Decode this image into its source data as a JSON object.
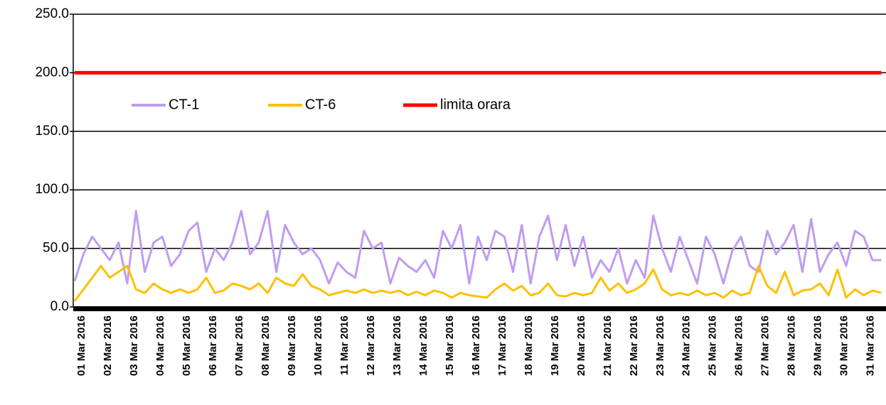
{
  "chart_data": {
    "type": "line",
    "categories": [
      "01 Mar 2016",
      null,
      null,
      "02 Mar 2016",
      null,
      null,
      "03 Mar 2016",
      null,
      null,
      "04 Mar 2016",
      null,
      null,
      "05 Mar 2016",
      null,
      null,
      "06 Mar 2016",
      null,
      null,
      "07 Mar 2016",
      null,
      null,
      "08 Mar 2016",
      null,
      null,
      "09 Mar 2016",
      null,
      null,
      "10 Mar 2016",
      null,
      null,
      "11 Mar 2016",
      null,
      null,
      "12 Mar 2016",
      null,
      null,
      "13 Mar 2016",
      null,
      null,
      "14 Mar 2016",
      null,
      null,
      "15 Mar 2016",
      null,
      null,
      "16 Mar 2016",
      null,
      null,
      "17 Mar 2016",
      null,
      null,
      "18 Mar 2016",
      null,
      null,
      "19 Mar 2016",
      null,
      null,
      "20 Mar 2016",
      null,
      null,
      "21 Mar 2016",
      null,
      null,
      "22 Mar 2016",
      null,
      null,
      "23 Mar 2016",
      null,
      null,
      "24 Mar 2016",
      null,
      null,
      "25 Mar 2016",
      null,
      null,
      "26 Mar 2016",
      null,
      null,
      "27 Mar 2016",
      null,
      null,
      "28 Mar 2016",
      null,
      null,
      "29 Mar 2016",
      null,
      null,
      "30 Mar 2016",
      null,
      null,
      "31 Mar 2016",
      null,
      null
    ],
    "series": [
      {
        "name": "CT-1",
        "color": "#c09cf0",
        "values": [
          22,
          45,
          60,
          50,
          40,
          55,
          20,
          82,
          30,
          55,
          60,
          35,
          45,
          65,
          72,
          30,
          50,
          40,
          55,
          82,
          45,
          55,
          82,
          30,
          70,
          55,
          45,
          50,
          40,
          20,
          38,
          30,
          25,
          65,
          50,
          55,
          20,
          42,
          35,
          30,
          40,
          25,
          65,
          50,
          70,
          20,
          60,
          40,
          65,
          60,
          30,
          70,
          20,
          60,
          78,
          40,
          70,
          35,
          60,
          25,
          40,
          30,
          50,
          20,
          40,
          25,
          78,
          50,
          30,
          60,
          40,
          20,
          60,
          45,
          20,
          48,
          60,
          35,
          30,
          65,
          45,
          55,
          70,
          30,
          75,
          30,
          45,
          55,
          35,
          65,
          60,
          40,
          40
        ]
      },
      {
        "name": "CT-6",
        "color": "#ffc000",
        "values": [
          5,
          15,
          25,
          35,
          25,
          30,
          35,
          15,
          12,
          20,
          15,
          12,
          15,
          12,
          15,
          25,
          12,
          14,
          20,
          18,
          15,
          20,
          12,
          25,
          20,
          18,
          28,
          18,
          15,
          10,
          12,
          14,
          12,
          15,
          12,
          14,
          12,
          14,
          10,
          13,
          10,
          14,
          12,
          8,
          12,
          10,
          9,
          8,
          15,
          20,
          14,
          18,
          10,
          12,
          20,
          10,
          9,
          12,
          10,
          12,
          25,
          14,
          20,
          12,
          15,
          20,
          32,
          15,
          10,
          12,
          10,
          14,
          10,
          12,
          8,
          14,
          10,
          12,
          35,
          18,
          12,
          30,
          10,
          14,
          15,
          20,
          10,
          32,
          8,
          15,
          10,
          14,
          12
        ]
      },
      {
        "name": "limita orara",
        "color": "#ff0000",
        "values": [
          200,
          200,
          200,
          200,
          200,
          200,
          200,
          200,
          200,
          200,
          200,
          200,
          200,
          200,
          200,
          200,
          200,
          200,
          200,
          200,
          200,
          200,
          200,
          200,
          200,
          200,
          200,
          200,
          200,
          200,
          200,
          200,
          200,
          200,
          200,
          200,
          200,
          200,
          200,
          200,
          200,
          200,
          200,
          200,
          200,
          200,
          200,
          200,
          200,
          200,
          200,
          200,
          200,
          200,
          200,
          200,
          200,
          200,
          200,
          200,
          200,
          200,
          200,
          200,
          200,
          200,
          200,
          200,
          200,
          200,
          200,
          200,
          200,
          200,
          200,
          200,
          200,
          200,
          200,
          200,
          200,
          200,
          200,
          200,
          200,
          200,
          200,
          200,
          200,
          200,
          200,
          200,
          200
        ]
      }
    ],
    "ylim": [
      0,
      250
    ],
    "yticks": [
      {
        "value": 0,
        "label": "0.0"
      },
      {
        "value": 50,
        "label": "50.0"
      },
      {
        "value": 100,
        "label": "100.0"
      },
      {
        "value": 150,
        "label": "150.0"
      },
      {
        "value": 200,
        "label": "200.0"
      },
      {
        "value": 250,
        "label": "250.0"
      }
    ],
    "grid": true
  }
}
